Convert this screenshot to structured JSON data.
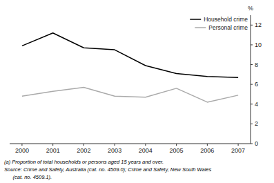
{
  "chart_data": {
    "type": "line",
    "x": [
      2000,
      2001,
      2002,
      2003,
      2004,
      2005,
      2006,
      2007
    ],
    "xlim": [
      1999.6,
      2007.4
    ],
    "xticks": [
      2000,
      2001,
      2002,
      2003,
      2004,
      2005,
      2006,
      2007
    ],
    "ylim": [
      0,
      13
    ],
    "yticks": [
      0,
      2,
      4,
      6,
      8,
      10,
      12
    ],
    "ylabel": "%",
    "series": [
      {
        "name": "Household crime",
        "color": "#000000",
        "values": [
          9.9,
          11.2,
          9.7,
          9.5,
          7.9,
          7.1,
          6.8,
          6.7
        ]
      },
      {
        "name": "Personal crime",
        "color": "#aaaaaa",
        "values": [
          4.8,
          5.3,
          5.7,
          4.8,
          4.7,
          5.6,
          4.2,
          4.9
        ]
      }
    ],
    "legend": "upper right",
    "annotations": [
      "(a) Proportion of total households or persons aged 15 years and over.",
      "Source: Crime and Safety, Australia (cat. no. 4509.0); Crime and Safety, New South Wales",
      "      (cat. no. 4509.1)."
    ]
  }
}
